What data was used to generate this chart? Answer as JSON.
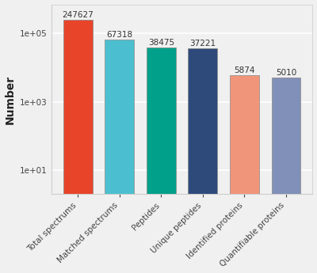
{
  "categories": [
    "Total spectrums",
    "Matched spectrums",
    "Peptides",
    "Unique peptides",
    "Identified proteins",
    "Quantifiable proteins"
  ],
  "values": [
    247627,
    67318,
    38475,
    37221,
    5874,
    5010
  ],
  "bar_colors": [
    "#E8442A",
    "#4BBFCF",
    "#00A08A",
    "#2E4A7A",
    "#F0957A",
    "#8090B8"
  ],
  "ylabel": "Number",
  "background_color": "#f0f0f0",
  "plot_bg_color": "#f0f0f0",
  "grid_color": "#ffffff",
  "label_fontsize": 10,
  "tick_fontsize": 7.5,
  "bar_label_fontsize": 7.5,
  "yticks": [
    10,
    1000,
    100000
  ],
  "ytick_labels": [
    "1e+01",
    "1e+03",
    "1e+05"
  ],
  "ymin": 2,
  "ymax": 700000
}
